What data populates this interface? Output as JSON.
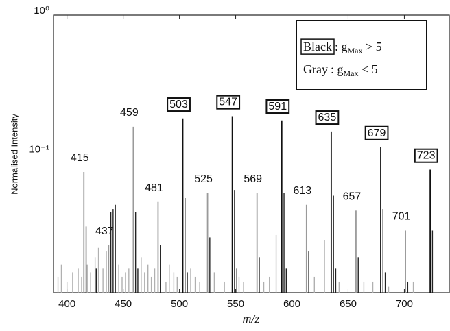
{
  "chart_data": {
    "type": "stem",
    "y_label": "Normalised Intensity",
    "x_label": "m/z",
    "xlim": [
      388,
      740
    ],
    "xticks": [
      400,
      450,
      500,
      550,
      600,
      650,
      700
    ],
    "ylim": [
      0.01,
      1
    ],
    "yticks": [
      {
        "value": 1,
        "label": "10⁰"
      },
      {
        "value": 0.1,
        "label": "10⁻¹"
      }
    ],
    "log_y": true,
    "legend": [
      {
        "key": "Black",
        "text": ": g",
        "sub": "Max",
        "rest": " > 5",
        "boxed": true
      },
      {
        "key": "Gray",
        "text": ": g",
        "sub": "Max",
        "rest": " < 5",
        "boxed": false
      }
    ],
    "series": [
      {
        "color": "#9a9a9a",
        "labels": true,
        "boxed": false,
        "x": [
          415,
          437,
          459,
          481,
          525,
          569,
          613,
          657,
          701
        ],
        "values": [
          0.074,
          0.022,
          0.157,
          0.045,
          0.052,
          0.052,
          0.043,
          0.039,
          0.028
        ]
      },
      {
        "color": "#b0b0b0",
        "labels": false,
        "boxed": false,
        "x": [
          392,
          395,
          400,
          405,
          410,
          413,
          418,
          421,
          425,
          428,
          432,
          435,
          446,
          449,
          452,
          455,
          466,
          469,
          472,
          475,
          478,
          488,
          491,
          495,
          498,
          510,
          514,
          518,
          531,
          540,
          553,
          557,
          575,
          580,
          586,
          620,
          629,
          642,
          664,
          672,
          686,
          708
        ],
        "values": [
          0.013,
          0.016,
          0.012,
          0.014,
          0.015,
          0.013,
          0.016,
          0.014,
          0.018,
          0.021,
          0.015,
          0.02,
          0.016,
          0.013,
          0.014,
          0.015,
          0.018,
          0.014,
          0.016,
          0.013,
          0.015,
          0.012,
          0.016,
          0.014,
          0.013,
          0.015,
          0.013,
          0.012,
          0.014,
          0.012,
          0.013,
          0.012,
          0.012,
          0.013,
          0.026,
          0.013,
          0.024,
          0.012,
          0.012,
          0.012,
          0.011,
          0.012
        ]
      },
      {
        "color": "#111111",
        "labels": true,
        "boxed": true,
        "x": [
          503,
          547,
          591,
          635,
          679,
          723
        ],
        "values": [
          0.18,
          0.187,
          0.174,
          0.145,
          0.112,
          0.077
        ]
      },
      {
        "color": "#222222",
        "labels": false,
        "boxed": false,
        "x": [
          417,
          426,
          439,
          441,
          443,
          461,
          463,
          483,
          505,
          507,
          527,
          549,
          551,
          571,
          593,
          595,
          615,
          637,
          639,
          659,
          681,
          683,
          703,
          725
        ],
        "values": [
          0.03,
          0.015,
          0.038,
          0.04,
          0.043,
          0.038,
          0.015,
          0.022,
          0.048,
          0.014,
          0.025,
          0.055,
          0.015,
          0.018,
          0.052,
          0.015,
          0.02,
          0.05,
          0.015,
          0.018,
          0.04,
          0.014,
          0.012,
          0.028
        ]
      }
    ]
  }
}
